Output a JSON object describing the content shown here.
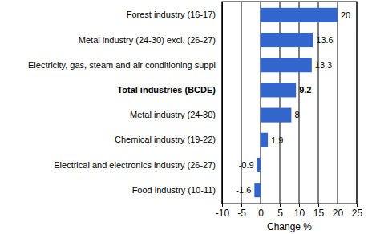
{
  "chart_data": {
    "type": "bar",
    "orientation": "horizontal",
    "categories": [
      "Forest industry (16-17)",
      "Metal industry (24-30) excl. (26-27)",
      "Electricity, gas, steam and air conditioning suppl",
      "Total industries (BCDE)",
      "Metal industry (24-30)",
      "Chemical industry (19-22)",
      "Electrical and electronics industry (26-27)",
      "Food industry (10-11)"
    ],
    "values": [
      20,
      13.6,
      13.3,
      9.2,
      8,
      1.9,
      -0.9,
      -1.6
    ],
    "color": "#3366cc",
    "xlabel": "Change %",
    "xlim": [
      -10,
      25
    ],
    "xticks": [
      -10,
      -5,
      0,
      5,
      10,
      15,
      20,
      25
    ],
    "grid": true,
    "data_labels": true
  }
}
